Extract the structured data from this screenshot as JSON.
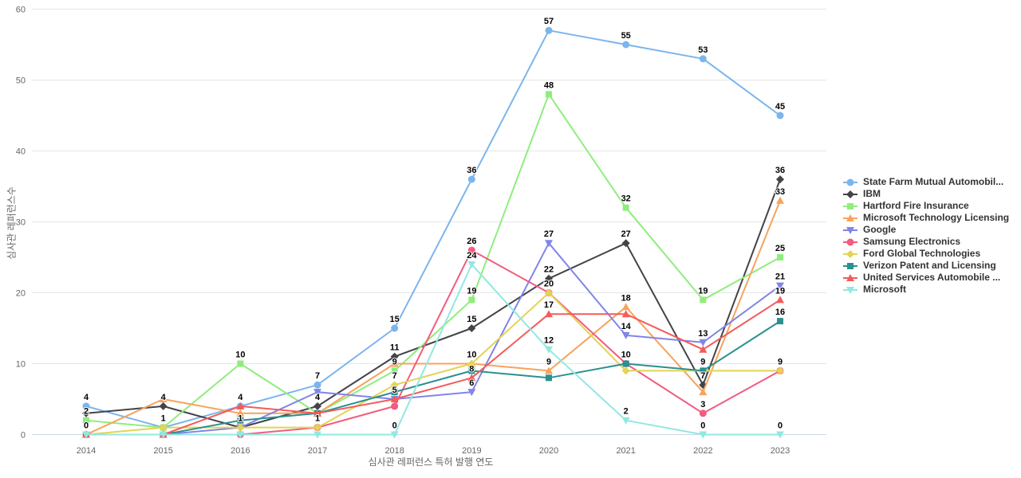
{
  "chart_data": {
    "type": "line",
    "title": "",
    "xlabel": "심사관 레퍼런스 특허 발행 연도",
    "ylabel": "심사관 레퍼런스수",
    "x": [
      "2014",
      "2015",
      "2016",
      "2017",
      "2018",
      "2019",
      "2020",
      "2021",
      "2022",
      "2023"
    ],
    "ylim": [
      0,
      60
    ],
    "yticks": [
      0,
      10,
      20,
      30,
      40,
      50,
      60
    ],
    "grid": true,
    "legend_position": "right",
    "data_labels": true,
    "series": [
      {
        "name": "State Farm Mutual Automobil...",
        "color": "#7cb5ec",
        "marker": "circle",
        "values": [
          4,
          1,
          4,
          7,
          15,
          36,
          57,
          55,
          53,
          45
        ]
      },
      {
        "name": "IBM",
        "color": "#434348",
        "marker": "diamond",
        "values": [
          3,
          4,
          1,
          4,
          11,
          15,
          22,
          27,
          7,
          36
        ]
      },
      {
        "name": "Hartford Fire Insurance",
        "color": "#90ed7d",
        "marker": "square",
        "values": [
          2,
          1,
          10,
          3,
          9,
          19,
          48,
          32,
          19,
          25
        ]
      },
      {
        "name": "Microsoft Technology Licensing",
        "color": "#f7a35c",
        "marker": "triangle",
        "values": [
          0,
          5,
          3,
          3,
          10,
          10,
          9,
          18,
          6,
          33
        ]
      },
      {
        "name": "Google",
        "color": "#8085e9",
        "marker": "triangle-down",
        "values": [
          0,
          0,
          1,
          6,
          5,
          6,
          27,
          14,
          13,
          21
        ]
      },
      {
        "name": "Samsung Electronics",
        "color": "#f15c80",
        "marker": "circle",
        "values": [
          0,
          0,
          0,
          1,
          4,
          26,
          20,
          10,
          3,
          9
        ]
      },
      {
        "name": "Ford Global Technologies",
        "color": "#e4d354",
        "marker": "diamond",
        "values": [
          0,
          1,
          1,
          1,
          7,
          10,
          20,
          9,
          9,
          9
        ]
      },
      {
        "name": "Verizon Patent and Licensing",
        "color": "#2b908f",
        "marker": "square",
        "values": [
          0,
          0,
          2,
          3,
          6,
          9,
          8,
          10,
          9,
          16
        ]
      },
      {
        "name": "United Services Automobile ...",
        "color": "#f45b5b",
        "marker": "triangle",
        "values": [
          0,
          0,
          4,
          3,
          5,
          8,
          17,
          17,
          12,
          19
        ]
      },
      {
        "name": "Microsoft",
        "color": "#91e8e1",
        "marker": "triangle-down",
        "values": [
          0,
          0,
          0,
          0,
          0,
          24,
          12,
          2,
          0,
          0
        ]
      }
    ],
    "colors": {
      "background": "#ffffff",
      "grid": "#e6e6e6",
      "axis_line": "#ccd6eb",
      "tick_text": "#666666",
      "axis_title_text": "#666666",
      "data_label_text": "#000000",
      "legend_text": "#333333"
    }
  }
}
